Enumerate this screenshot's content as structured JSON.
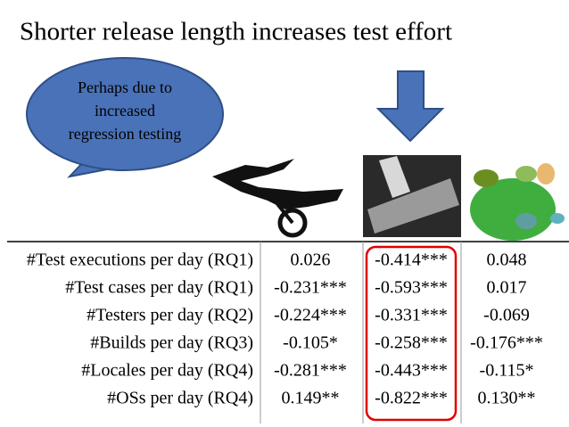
{
  "title": "Shorter release length increases test effort",
  "callout": {
    "lines": [
      "Perhaps due to",
      "increased",
      "regression testing"
    ]
  },
  "table": {
    "rows": [
      [
        "#Test executions per day (RQ1)",
        "0.026",
        "-0.414***",
        "0.048"
      ],
      [
        "#Test cases per day (RQ1)",
        "-0.231***",
        "-0.593***",
        "0.017"
      ],
      [
        "#Testers per day (RQ2)",
        "-0.224***",
        "-0.331***",
        "-0.069"
      ],
      [
        "#Builds per day (RQ3)",
        "-0.105*",
        "-0.258***",
        "-0.176***"
      ],
      [
        "#Locales per day (RQ4)",
        "-0.281***",
        "-0.443***",
        "-0.115*"
      ],
      [
        "#OSs per day (RQ4)",
        "0.149**",
        "-0.822***",
        "0.130**"
      ]
    ]
  }
}
